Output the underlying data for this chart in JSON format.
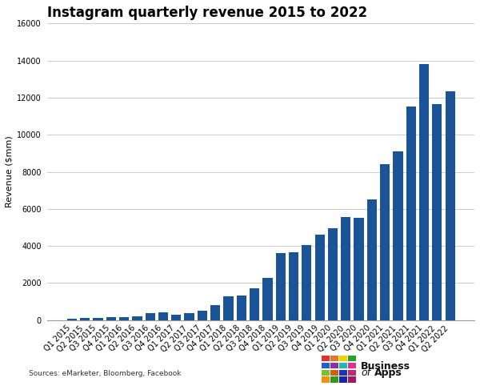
{
  "title": "Instagram quarterly revenue 2015 to 2022",
  "ylabel": "Revenue ($mm)",
  "source_text": "Sources: eMarketer, Bloomberg, Facebook",
  "bar_color": "#1a5496",
  "background_color": "#ffffff",
  "categories": [
    "Q1 2015",
    "Q2 2015",
    "Q3 2015",
    "Q4 2015",
    "Q1 2016",
    "Q2 2016",
    "Q3 2016",
    "Q4 2016",
    "Q1 2017",
    "Q2 2017",
    "Q3 2017",
    "Q4 2017",
    "Q1 2018",
    "Q2 2018",
    "Q3 2018",
    "Q4 2018",
    "Q1 2019",
    "Q2 2019",
    "Q3 2019",
    "Q4 2019",
    "Q1 2020",
    "Q2 2020",
    "Q3 2020",
    "Q4 2020",
    "Q1 2021",
    "Q2 2021",
    "Q3 2021",
    "Q4 2021",
    "Q1 2022",
    "Q2 2022"
  ],
  "values": [
    69,
    130,
    100,
    160,
    170,
    220,
    360,
    440,
    310,
    380,
    500,
    800,
    1300,
    1350,
    1700,
    2300,
    3600,
    3650,
    4050,
    4600,
    4950,
    5550,
    5500,
    6500,
    8400,
    9100,
    11500,
    13800,
    11650,
    12350
  ],
  "ylim": [
    0,
    16000
  ],
  "yticks": [
    0,
    2000,
    4000,
    6000,
    8000,
    10000,
    12000,
    14000,
    16000
  ],
  "grid_color": "#cccccc",
  "title_fontsize": 12,
  "axis_fontsize": 8,
  "tick_fontsize": 7,
  "logo_colors": [
    "#e03030",
    "#e87820",
    "#f0d000",
    "#28a028",
    "#2060c8",
    "#9030a0",
    "#20b8b8",
    "#e03090",
    "#78c030",
    "#d06010",
    "#2030c0",
    "#c02870",
    "#f09010",
    "#309820",
    "#1828a0",
    "#a01868"
  ]
}
